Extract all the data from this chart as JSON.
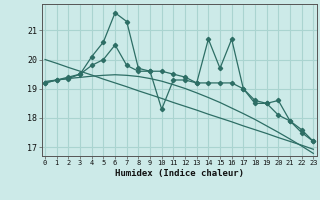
{
  "xlabel": "Humidex (Indice chaleur)",
  "background_color": "#cceae8",
  "grid_color": "#aad4d0",
  "line_color": "#2d6e65",
  "x_ticks": [
    0,
    1,
    2,
    3,
    4,
    5,
    6,
    7,
    8,
    9,
    10,
    11,
    12,
    13,
    14,
    15,
    16,
    17,
    18,
    19,
    20,
    21,
    22,
    23
  ],
  "y_ticks": [
    17,
    18,
    19,
    20,
    21
  ],
  "xlim": [
    -0.3,
    23.3
  ],
  "ylim": [
    16.7,
    21.9
  ],
  "series1": [
    19.2,
    19.3,
    19.4,
    19.5,
    20.1,
    20.6,
    21.6,
    21.3,
    19.7,
    19.6,
    19.6,
    19.5,
    19.4,
    19.2,
    20.7,
    19.7,
    20.7,
    19.0,
    18.6,
    18.5,
    18.6,
    17.9,
    17.6,
    17.2
  ],
  "series2": [
    19.2,
    19.3,
    19.35,
    19.5,
    19.8,
    20.0,
    20.5,
    19.8,
    19.6,
    19.6,
    18.3,
    19.3,
    19.3,
    19.2,
    19.2,
    19.2,
    19.2,
    19.0,
    18.5,
    18.5,
    18.1,
    17.9,
    17.5,
    17.2
  ],
  "trend1": [
    20.0,
    19.87,
    19.73,
    19.6,
    19.47,
    19.33,
    19.2,
    19.07,
    18.93,
    18.8,
    18.67,
    18.53,
    18.4,
    18.27,
    18.13,
    18.0,
    17.87,
    17.73,
    17.6,
    17.47,
    17.33,
    17.2,
    17.07,
    16.93
  ],
  "trend2": [
    19.25,
    19.3,
    19.35,
    19.39,
    19.43,
    19.46,
    19.48,
    19.46,
    19.42,
    19.35,
    19.26,
    19.14,
    19.01,
    18.86,
    18.7,
    18.53,
    18.34,
    18.15,
    17.95,
    17.73,
    17.51,
    17.28,
    17.04,
    16.79
  ]
}
